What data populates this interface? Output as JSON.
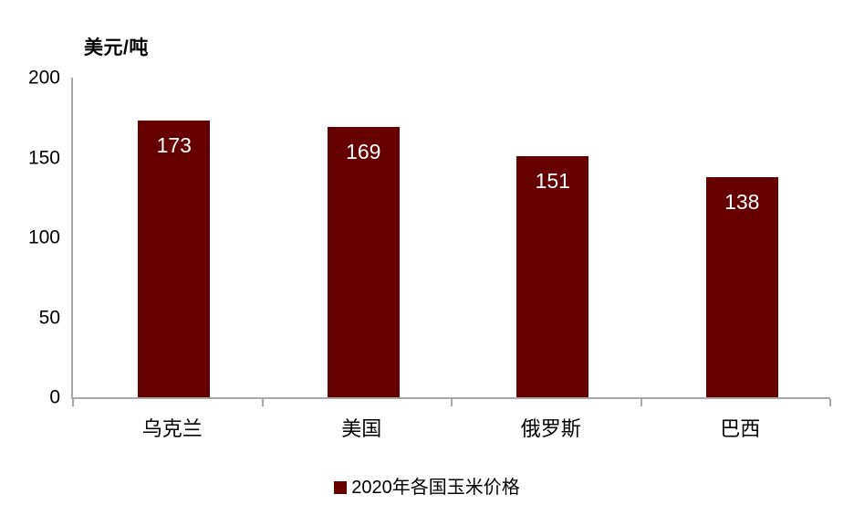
{
  "chart_data": {
    "type": "bar",
    "unit_label": "美元/吨",
    "categories": [
      "乌克兰",
      "美国",
      "俄罗斯",
      "巴西"
    ],
    "values": [
      173,
      169,
      151,
      138
    ],
    "series_name": "2020年各国玉米价格",
    "ylim": [
      0,
      200
    ],
    "yticks": [
      0,
      50,
      100,
      150,
      200
    ],
    "grid": false,
    "legend_position": "bottom",
    "bar_color": "#660000",
    "axis_color": "#a6a6a6",
    "value_label_color": "#ffffff"
  }
}
